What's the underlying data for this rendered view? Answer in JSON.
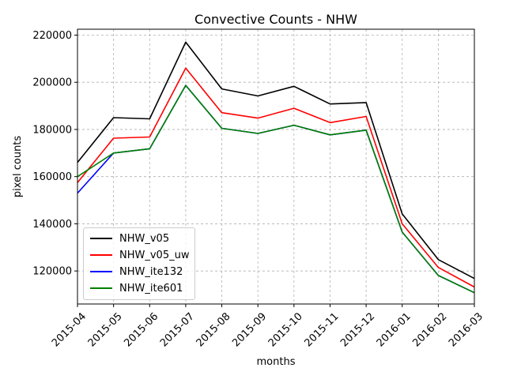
{
  "chart_data": {
    "type": "line",
    "title": "Convective Counts - NHW",
    "xlabel": "months",
    "ylabel": "pixel counts",
    "categories": [
      "2015-04",
      "2015-05",
      "2015-06",
      "2015-07",
      "2015-08",
      "2015-09",
      "2015-10",
      "2015-11",
      "2015-12",
      "2016-01",
      "2016-02",
      "2016-03"
    ],
    "ylim": [
      106000,
      222500
    ],
    "yticks": [
      120000,
      140000,
      160000,
      180000,
      200000,
      220000
    ],
    "ytick_labels": [
      "120000",
      "140000",
      "160000",
      "180000",
      "200000",
      "220000"
    ],
    "grid": true,
    "legend_position": "lower-left",
    "series": [
      {
        "name": "NHW_v05",
        "color": "#000000",
        "values": [
          166000,
          185000,
          184500,
          217000,
          197200,
          194200,
          198300,
          190800,
          191400,
          144200,
          124800,
          116800
        ]
      },
      {
        "name": "NHW_v05_uw",
        "color": "#ff0000",
        "values": [
          157500,
          176300,
          176800,
          206000,
          187100,
          184800,
          189000,
          182900,
          185500,
          140000,
          121500,
          113200
        ]
      },
      {
        "name": "NHW_ite132",
        "color": "#0000ff",
        "values": [
          153000,
          170000,
          171800,
          198700,
          180500,
          178300,
          181800,
          177700,
          179700,
          136500,
          118100,
          110800
        ]
      },
      {
        "name": "NHW_ite601",
        "color": "#008000",
        "values": [
          160000,
          170000,
          171800,
          198700,
          180500,
          178300,
          181800,
          177700,
          179700,
          136500,
          118100,
          110800
        ]
      }
    ]
  }
}
